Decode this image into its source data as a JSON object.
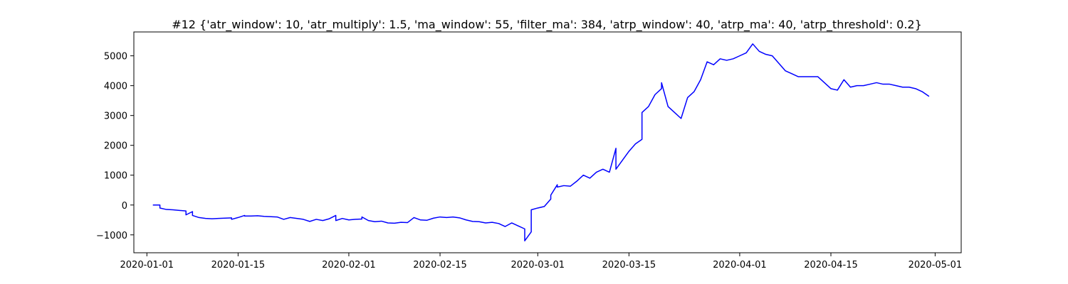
{
  "chart_data": {
    "type": "line",
    "title": "#12 {'atr_window': 10, 'atr_multiply': 1.5, 'ma_window': 55, 'filter_ma': 384, 'atrp_window': 40, 'atrp_ma': 40, 'atrp_threshold': 0.2}",
    "xlabel": "",
    "ylabel": "",
    "x_axis_type": "date",
    "xlim": [
      "2020-12-24",
      "2020-05-05"
    ],
    "ylim": [
      -1600,
      5800
    ],
    "x_ticks": [
      "2020-01-01",
      "2020-01-15",
      "2020-02-01",
      "2020-02-15",
      "2020-03-01",
      "2020-03-15",
      "2020-04-01",
      "2020-04-15",
      "2020-05-01"
    ],
    "y_ticks": [
      -1000,
      0,
      1000,
      2000,
      3000,
      4000,
      5000
    ],
    "y_tick_labels": [
      "−1000",
      "0",
      "1000",
      "2000",
      "3000",
      "4000",
      "5000"
    ],
    "grid": false,
    "legend": "none",
    "series_color": "#0000ff",
    "series": [
      {
        "x": [
          "2020-01-02",
          "2020-01-02",
          "2020-01-03",
          "2020-01-03",
          "2020-01-03",
          "2020-01-04",
          "2020-01-04",
          "2020-01-05",
          "2020-01-06",
          "2020-01-07",
          "2020-01-07",
          "2020-01-08",
          "2020-01-08",
          "2020-01-08",
          "2020-01-09",
          "2020-01-10",
          "2020-01-11",
          "2020-01-12",
          "2020-01-13",
          "2020-01-14",
          "2020-01-14",
          "2020-01-15",
          "2020-01-16",
          "2020-01-16",
          "2020-01-17",
          "2020-01-18",
          "2020-01-19",
          "2020-01-21",
          "2020-01-22",
          "2020-01-23",
          "2020-01-24",
          "2020-01-25",
          "2020-01-26",
          "2020-01-27",
          "2020-01-28",
          "2020-01-29",
          "2020-01-30",
          "2020-01-30",
          "2020-01-31",
          "2020-02-01",
          "2020-02-02",
          "2020-02-03",
          "2020-02-03",
          "2020-02-04",
          "2020-02-05",
          "2020-02-06",
          "2020-02-07",
          "2020-02-08",
          "2020-02-09",
          "2020-02-10",
          "2020-02-11",
          "2020-02-12",
          "2020-02-13",
          "2020-02-14",
          "2020-02-15",
          "2020-02-16",
          "2020-02-17",
          "2020-02-18",
          "2020-02-19",
          "2020-02-20",
          "2020-02-21",
          "2020-02-22",
          "2020-02-23",
          "2020-02-24",
          "2020-02-25",
          "2020-02-26",
          "2020-02-27",
          "2020-02-28",
          "2020-02-28",
          "2020-02-29",
          "2020-02-29",
          "2020-03-01",
          "2020-03-02",
          "2020-03-03",
          "2020-03-03",
          "2020-03-04",
          "2020-03-04",
          "2020-03-05",
          "2020-03-06",
          "2020-03-07",
          "2020-03-08",
          "2020-03-09",
          "2020-03-10",
          "2020-03-11",
          "2020-03-12",
          "2020-03-13",
          "2020-03-13",
          "2020-03-14",
          "2020-03-15",
          "2020-03-16",
          "2020-03-17",
          "2020-03-17",
          "2020-03-18",
          "2020-03-19",
          "2020-03-20",
          "2020-03-20",
          "2020-03-21",
          "2020-03-22",
          "2020-03-23",
          "2020-03-24",
          "2020-03-25",
          "2020-03-26",
          "2020-03-27",
          "2020-03-28",
          "2020-03-29",
          "2020-03-30",
          "2020-03-31",
          "2020-04-01",
          "2020-04-02",
          "2020-04-03",
          "2020-04-04",
          "2020-04-05",
          "2020-04-06",
          "2020-04-07",
          "2020-04-08",
          "2020-04-09",
          "2020-04-10",
          "2020-04-11",
          "2020-04-12",
          "2020-04-13",
          "2020-04-14",
          "2020-04-15",
          "2020-04-16",
          "2020-04-17",
          "2020-04-18",
          "2020-04-19",
          "2020-04-20",
          "2020-04-21",
          "2020-04-22",
          "2020-04-23",
          "2020-04-24",
          "2020-04-25",
          "2020-04-26",
          "2020-04-27",
          "2020-04-28",
          "2020-04-29",
          "2020-04-30"
        ],
        "y": [
          0,
          0,
          0,
          -100,
          -100,
          -150,
          -150,
          -160,
          -180,
          -200,
          -330,
          -220,
          -320,
          -350,
          -420,
          -450,
          -460,
          -450,
          -440,
          -430,
          -480,
          -420,
          -350,
          -370,
          -370,
          -360,
          -380,
          -400,
          -480,
          -420,
          -450,
          -480,
          -550,
          -480,
          -520,
          -460,
          -350,
          -520,
          -450,
          -500,
          -480,
          -470,
          -400,
          -520,
          -560,
          -540,
          -600,
          -610,
          -580,
          -590,
          -420,
          -500,
          -510,
          -440,
          -400,
          -420,
          -400,
          -430,
          -500,
          -550,
          -560,
          -600,
          -580,
          -620,
          -720,
          -600,
          -700,
          -800,
          -1200,
          -900,
          -160,
          -100,
          -50,
          200,
          330,
          680,
          600,
          650,
          630,
          800,
          1000,
          900,
          1100,
          1200,
          1100,
          1900,
          1200,
          1500,
          1800,
          2050,
          2200,
          3100,
          3300,
          3700,
          3900,
          4100,
          3300,
          3100,
          2900,
          3600,
          3800,
          4200,
          4800,
          4700,
          4900,
          4850,
          4900,
          5000,
          5100,
          5400,
          5150,
          5050,
          5000,
          4750,
          4500,
          4400,
          4300,
          4300,
          4300,
          4300,
          4100,
          3900,
          3850,
          4200,
          3950,
          4000,
          4000,
          4050,
          4100,
          4050,
          4050,
          4000,
          3950,
          3950,
          3900,
          3800,
          3650
        ]
      }
    ]
  }
}
